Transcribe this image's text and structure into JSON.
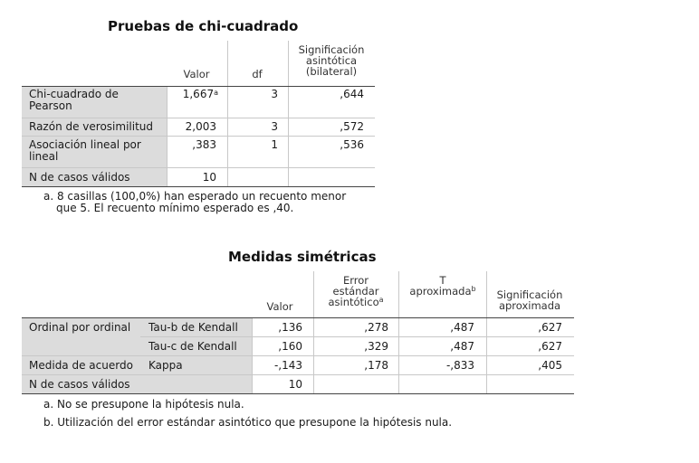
{
  "table1": {
    "title": "Pruebas de chi-cuadrado",
    "headers": {
      "valor": "Valor",
      "df": "df",
      "sig_1": "Significación",
      "sig_2": "asintótica",
      "sig_3": "(bilateral)"
    },
    "rows": [
      {
        "label_1": "Chi-cuadrado de",
        "label_2": "Pearson",
        "valor": "1,667",
        "valor_sup": "a",
        "df": "3",
        "sig": ",644"
      },
      {
        "label_1": "Razón de verosimilitud",
        "valor": "2,003",
        "df": "3",
        "sig": ",572"
      },
      {
        "label_1": "Asociación lineal por",
        "label_2": "lineal",
        "valor": ",383",
        "df": "1",
        "sig": ",536"
      },
      {
        "label_1": "N de casos válidos",
        "valor": "10",
        "df": "",
        "sig": ""
      }
    ],
    "footnote_1": "a. 8 casillas (100,0%) han esperado un recuento menor",
    "footnote_2": "que 5. El recuento mínimo esperado es ,40."
  },
  "table2": {
    "title": "Medidas simétricas",
    "headers": {
      "valor": "Valor",
      "error_1": "Error",
      "error_2": "estándar",
      "error_3": "asintótico",
      "error_sup": "a",
      "t_1": "T",
      "t_2": "aproximada",
      "t_sup": "b",
      "sig_1": "Significación",
      "sig_2": "aproximada"
    },
    "rows": [
      {
        "group": "Ordinal por ordinal",
        "measure": "Tau-b de Kendall",
        "valor": ",136",
        "error": ",278",
        "t": ",487",
        "sig": ",627"
      },
      {
        "group": "",
        "measure": "Tau-c de Kendall",
        "valor": ",160",
        "error": ",329",
        "t": ",487",
        "sig": ",627"
      },
      {
        "group": "Medida de acuerdo",
        "measure": "Kappa",
        "valor": "-,143",
        "error": ",178",
        "t": "-,833",
        "sig": ",405"
      },
      {
        "group": "N de casos válidos",
        "measure": "",
        "valor": "10",
        "error": "",
        "t": "",
        "sig": ""
      }
    ],
    "footnote_a": "a. No se presupone la hipótesis nula.",
    "footnote_b": "b. Utilización del error estándar asintótico que presupone la hipótesis nula."
  }
}
